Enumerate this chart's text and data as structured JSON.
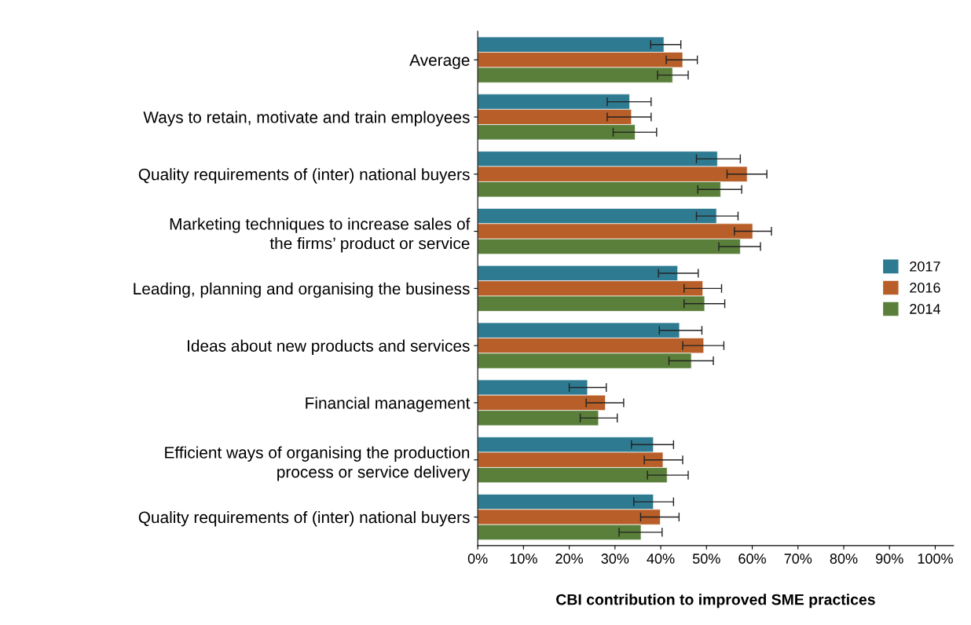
{
  "chart_data": {
    "type": "bar",
    "orientation": "horizontal",
    "categories": [
      "Average",
      "Ways to retain, motivate and train employees",
      "Quality requirements of (inter) national buyers",
      "Marketing techniques to increase sales of\nthe firms’ product or service",
      "Leading, planning and organising the business",
      "Ideas about new products and services",
      "Financial management",
      "Efficient ways of organising the production\nprocess or service delivery",
      "Quality requirements of (inter) national buyers"
    ],
    "series": [
      {
        "name": "2017",
        "color": "#2e7b91",
        "values": [
          40.7,
          33.2,
          52.4,
          52.2,
          43.7,
          44.1,
          24.0,
          38.4,
          38.4
        ],
        "errors": [
          [
            37.8,
            44.4
          ],
          [
            28.3,
            37.9
          ],
          [
            47.8,
            57.4
          ],
          [
            47.8,
            56.9
          ],
          [
            39.5,
            48.2
          ],
          [
            39.7,
            49.0
          ],
          [
            20.0,
            28.1
          ],
          [
            33.6,
            42.8
          ],
          [
            34.1,
            42.8
          ]
        ]
      },
      {
        "name": "2016",
        "color": "#b85e28",
        "values": [
          44.8,
          33.6,
          58.9,
          60.1,
          49.2,
          49.4,
          27.9,
          40.5,
          39.9
        ],
        "errors": [
          [
            41.2,
            48.0
          ],
          [
            28.3,
            37.9
          ],
          [
            54.5,
            63.2
          ],
          [
            56.1,
            64.2
          ],
          [
            45.1,
            53.3
          ],
          [
            44.8,
            53.8
          ],
          [
            23.7,
            31.9
          ],
          [
            36.4,
            44.8
          ],
          [
            35.6,
            44.0
          ]
        ]
      },
      {
        "name": "2014",
        "color": "#5a7f3a",
        "values": [
          42.6,
          34.4,
          53.1,
          57.4,
          49.6,
          46.7,
          26.4,
          41.4,
          35.7
        ],
        "errors": [
          [
            39.3,
            46.0
          ],
          [
            29.6,
            39.1
          ],
          [
            48.1,
            57.7
          ],
          [
            52.7,
            61.8
          ],
          [
            45.1,
            54.0
          ],
          [
            41.8,
            51.5
          ],
          [
            22.4,
            30.5
          ],
          [
            37.1,
            46.0
          ],
          [
            30.9,
            40.3
          ]
        ]
      }
    ],
    "xlabel": "CBI contribution to improved SME practices",
    "xlim": [
      0,
      104
    ],
    "xticks": [
      {
        "value": 0,
        "label": "0%"
      },
      {
        "value": 10,
        "label": "10%"
      },
      {
        "value": 20,
        "label": "20%"
      },
      {
        "value": 30,
        "label": "30%"
      },
      {
        "value": 40,
        "label": "40%"
      },
      {
        "value": 50,
        "label": "50%"
      },
      {
        "value": 60,
        "label": "60%"
      },
      {
        "value": 70,
        "label": "70%"
      },
      {
        "value": 80,
        "label": "80%"
      },
      {
        "value": 90,
        "label": "90%"
      },
      {
        "value": 100,
        "label": "100%"
      }
    ],
    "legend": "right",
    "grid": false
  }
}
